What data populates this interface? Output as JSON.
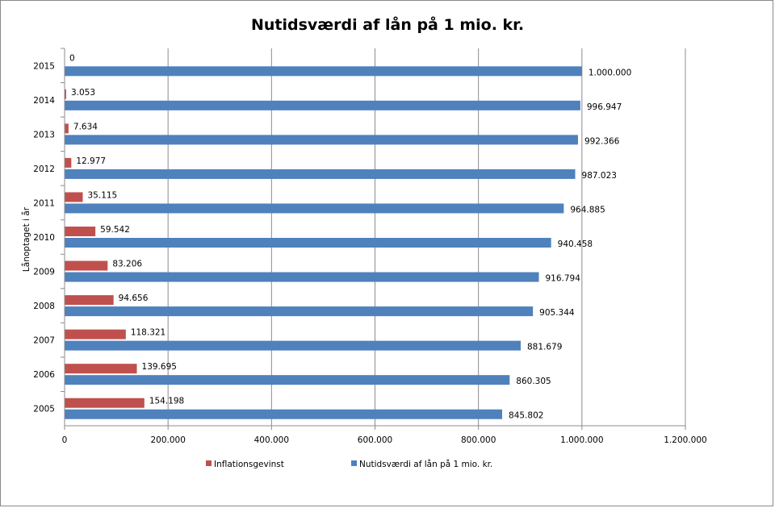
{
  "chart_data": {
    "type": "bar",
    "orientation": "horizontal",
    "title": "Nutidsværdi af lån på 1 mio. kr.",
    "xlabel": "",
    "ylabel": "Lånoptaget i år",
    "categories": [
      "2005",
      "2006",
      "2007",
      "2008",
      "2009",
      "2010",
      "2011",
      "2012",
      "2013",
      "2014",
      "2015"
    ],
    "series": [
      {
        "name": "Inflationsgevinst",
        "color": "#c0504d",
        "values": [
          154198,
          139695,
          118321,
          94656,
          83206,
          59542,
          35115,
          12977,
          7634,
          3053,
          0
        ],
        "labels": [
          "154.198",
          "139.695",
          "118.321",
          "94.656",
          "83.206",
          "59.542",
          "35.115",
          "12.977",
          "7.634",
          "3.053",
          "0"
        ]
      },
      {
        "name": "Nutidsværdi af lån på 1 mio. kr.",
        "color": "#4f81bd",
        "values": [
          845802,
          860305,
          881679,
          905344,
          916794,
          940458,
          964885,
          987023,
          992366,
          996947,
          1000000
        ],
        "labels": [
          "845.802",
          "860.305",
          "881.679",
          "905.344",
          "916.794",
          "940.458",
          "964.885",
          "987.023",
          "992.366",
          "996.947",
          "1.000.000"
        ]
      }
    ],
    "xlim": [
      0,
      1200000
    ],
    "xticks": [
      0,
      200000,
      400000,
      600000,
      800000,
      1000000,
      1200000
    ],
    "xtick_labels": [
      "0",
      "200.000",
      "400.000",
      "600.000",
      "800.000",
      "1.000.000",
      "1.200.000"
    ],
    "grid": true,
    "legend_position": "bottom"
  }
}
